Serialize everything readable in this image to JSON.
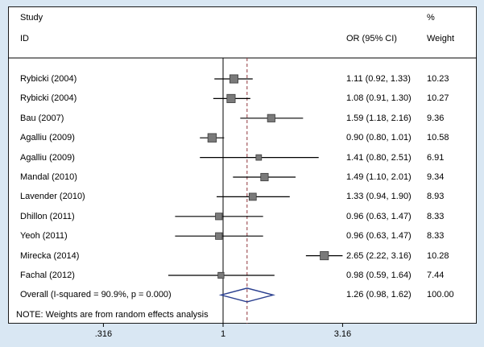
{
  "header": {
    "study_line1": "Study",
    "study_line2": "ID",
    "or_label": "OR (95% CI)",
    "pct_label": "%",
    "weight_label": "Weight"
  },
  "note": "NOTE: Weights are from random effects analysis",
  "chart_data": {
    "type": "scatter",
    "subtype": "forest-plot",
    "x_scale": "log",
    "x_ticks": [
      {
        "value": 0.316,
        "label": ".316"
      },
      {
        "value": 1,
        "label": "1"
      },
      {
        "value": 3.16,
        "label": "3.16"
      }
    ],
    "null_line": 1,
    "overall_line": 1.26,
    "studies": [
      {
        "id": "Rybicki (2004)",
        "or": 1.11,
        "ci_low": 0.92,
        "ci_high": 1.33,
        "or_text": "1.11 (0.92, 1.33)",
        "weight": 10.23,
        "weight_text": "10.23"
      },
      {
        "id": "Rybicki (2004)",
        "or": 1.08,
        "ci_low": 0.91,
        "ci_high": 1.3,
        "or_text": "1.08 (0.91, 1.30)",
        "weight": 10.27,
        "weight_text": "10.27"
      },
      {
        "id": "Bau (2007)",
        "or": 1.59,
        "ci_low": 1.18,
        "ci_high": 2.16,
        "or_text": "1.59 (1.18, 2.16)",
        "weight": 9.36,
        "weight_text": "9.36"
      },
      {
        "id": "Agalliu (2009)",
        "or": 0.9,
        "ci_low": 0.8,
        "ci_high": 1.01,
        "or_text": "0.90 (0.80, 1.01)",
        "weight": 10.58,
        "weight_text": "10.58"
      },
      {
        "id": "Agalliu (2009)",
        "or": 1.41,
        "ci_low": 0.8,
        "ci_high": 2.51,
        "or_text": "1.41 (0.80, 2.51)",
        "weight": 6.91,
        "weight_text": "6.91"
      },
      {
        "id": "Mandal (2010)",
        "or": 1.49,
        "ci_low": 1.1,
        "ci_high": 2.01,
        "or_text": "1.49 (1.10, 2.01)",
        "weight": 9.34,
        "weight_text": "9.34"
      },
      {
        "id": "Lavender (2010)",
        "or": 1.33,
        "ci_low": 0.94,
        "ci_high": 1.9,
        "or_text": "1.33 (0.94, 1.90)",
        "weight": 8.93,
        "weight_text": "8.93"
      },
      {
        "id": "Dhillon (2011)",
        "or": 0.96,
        "ci_low": 0.63,
        "ci_high": 1.47,
        "or_text": "0.96 (0.63, 1.47)",
        "weight": 8.33,
        "weight_text": "8.33"
      },
      {
        "id": "Yeoh (2011)",
        "or": 0.96,
        "ci_low": 0.63,
        "ci_high": 1.47,
        "or_text": "0.96 (0.63, 1.47)",
        "weight": 8.33,
        "weight_text": "8.33"
      },
      {
        "id": "Mirecka (2014)",
        "or": 2.65,
        "ci_low": 2.22,
        "ci_high": 3.16,
        "or_text": "2.65 (2.22, 3.16)",
        "weight": 10.28,
        "weight_text": "10.28"
      },
      {
        "id": "Fachal (2012)",
        "or": 0.98,
        "ci_low": 0.59,
        "ci_high": 1.64,
        "or_text": "0.98 (0.59, 1.64)",
        "weight": 7.44,
        "weight_text": "7.44"
      }
    ],
    "overall": {
      "id": "Overall  (I-squared = 90.9%, p = 0.000)",
      "or": 1.26,
      "ci_low": 0.98,
      "ci_high": 1.62,
      "or_text": "1.26 (0.98, 1.62)",
      "weight_text": "100.00"
    },
    "colors": {
      "background": "#d9e7f3",
      "frame_border": "#1a1a1a",
      "ci_line": "#000000",
      "marker_fill": "#7a7a7a",
      "marker_stroke": "#3a3a3a",
      "diamond": "#2a3f8f",
      "overall_dash": "#90353b"
    }
  }
}
